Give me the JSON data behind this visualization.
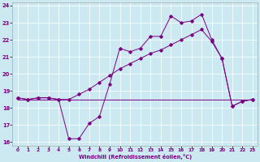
{
  "xlabel": "Windchill (Refroidissement éolien,°C)",
  "bg_color": "#cce8f0",
  "line_color": "#7b0082",
  "xlim": [
    -0.5,
    23.5
  ],
  "ylim": [
    15.8,
    24.2
  ],
  "xticks": [
    0,
    1,
    2,
    3,
    4,
    5,
    6,
    7,
    8,
    9,
    10,
    11,
    12,
    13,
    14,
    15,
    16,
    17,
    18,
    19,
    20,
    21,
    22,
    23
  ],
  "yticks": [
    16,
    17,
    18,
    19,
    20,
    21,
    22,
    23,
    24
  ],
  "series_flat_x": [
    0,
    1,
    2,
    3,
    4,
    5,
    6,
    7,
    8,
    9,
    10,
    11,
    12,
    13,
    14,
    15,
    16,
    17,
    18,
    19,
    20,
    21,
    22,
    23
  ],
  "series_flat_y": [
    18.5,
    18.5,
    18.5,
    18.5,
    18.5,
    18.5,
    18.5,
    18.5,
    18.5,
    18.5,
    18.5,
    18.5,
    18.5,
    18.5,
    18.5,
    18.5,
    18.5,
    18.5,
    18.5,
    18.5,
    18.5,
    18.5,
    18.5,
    18.5
  ],
  "series_zigzag_x": [
    0,
    1,
    2,
    3,
    4,
    5,
    6,
    7,
    8,
    9,
    10,
    11,
    12,
    13,
    14,
    15,
    16,
    17,
    18,
    19,
    20,
    21,
    22,
    23
  ],
  "series_zigzag_y": [
    18.6,
    18.5,
    18.6,
    18.6,
    18.5,
    16.2,
    16.2,
    17.1,
    17.5,
    19.4,
    21.5,
    21.3,
    21.5,
    22.2,
    22.2,
    23.4,
    23.0,
    23.1,
    23.5,
    22.0,
    20.9,
    18.1,
    18.4,
    18.5
  ],
  "series_diag_x": [
    0,
    1,
    2,
    3,
    4,
    5,
    6,
    7,
    8,
    9,
    10,
    11,
    12,
    13,
    14,
    15,
    16,
    17,
    18,
    19,
    20,
    21,
    22,
    23
  ],
  "series_diag_y": [
    18.6,
    18.5,
    18.6,
    18.6,
    18.5,
    18.5,
    18.8,
    19.1,
    19.5,
    19.9,
    20.3,
    20.6,
    20.9,
    21.2,
    21.4,
    21.7,
    22.0,
    22.3,
    22.6,
    21.9,
    20.9,
    18.1,
    18.4,
    18.5
  ]
}
